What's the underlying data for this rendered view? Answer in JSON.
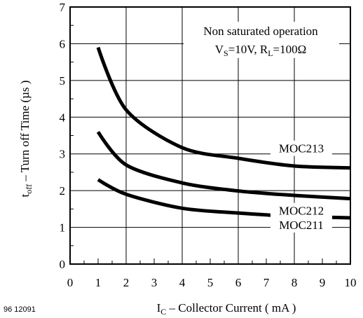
{
  "chart_data": {
    "type": "line",
    "figure_id": "96 12091",
    "annotation_line1": "Non saturated operation",
    "annotation_line2": "V_S=10V, R_L=100Ω",
    "annotation_parts": {
      "vs_main": "V",
      "vs_sub": "S",
      "vs_value": "=10V, R",
      "rl_sub": "L",
      "rl_value": "=100Ω"
    },
    "xlabel": "I_C – Collector Current ( mA )",
    "xlabel_parts": {
      "main": "I",
      "sub": "C",
      "rest": " – Collector Current ( mA )"
    },
    "ylabel": "t_off – Turn off Time (µs )",
    "ylabel_parts": {
      "main": "t",
      "sub": "off",
      "rest": "  – Turn off Time  (µs )"
    },
    "xlim": [
      0,
      10
    ],
    "ylim": [
      0,
      7
    ],
    "xticks": [
      "0",
      "1",
      "2",
      "3",
      "4",
      "5",
      "6",
      "7",
      "8",
      "9",
      "10"
    ],
    "yticks": [
      "0",
      "1",
      "2",
      "3",
      "4",
      "5",
      "6",
      "7"
    ],
    "grid": true,
    "series": [
      {
        "name": "MOC213",
        "x": [
          1,
          2,
          4,
          6,
          8,
          10
        ],
        "values": [
          5.9,
          4.2,
          3.17,
          2.88,
          2.67,
          2.62
        ]
      },
      {
        "name": "MOC212",
        "x": [
          1,
          2,
          4,
          6,
          8,
          10
        ],
        "values": [
          3.6,
          2.7,
          2.21,
          1.99,
          1.87,
          1.78
        ]
      },
      {
        "name": "MOC211",
        "x": [
          1,
          2,
          4,
          6,
          8,
          10
        ],
        "values": [
          2.3,
          1.9,
          1.52,
          1.39,
          1.3,
          1.26
        ]
      }
    ]
  }
}
